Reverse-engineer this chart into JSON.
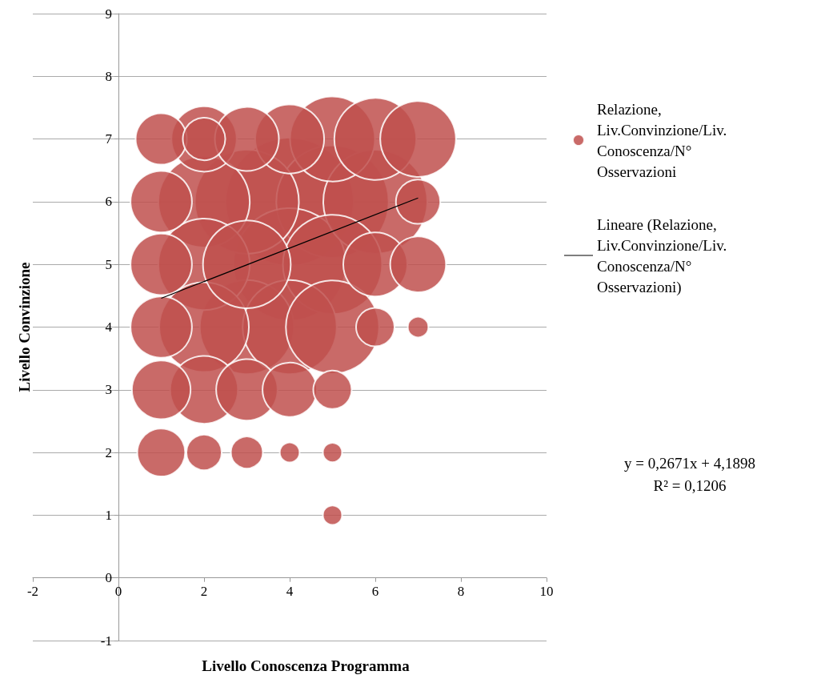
{
  "chart_data": {
    "type": "bubble",
    "xlabel": "Livello Conoscenza Programma",
    "ylabel": "Livello Convinzione",
    "xlim": [
      -2,
      10
    ],
    "xticks": [
      -2,
      0,
      2,
      4,
      6,
      8,
      10
    ],
    "ylim": [
      -1,
      9
    ],
    "yticks": [
      -1,
      0,
      1,
      2,
      3,
      4,
      5,
      6,
      7,
      8,
      9
    ],
    "grid": "y",
    "legend": "right",
    "series": [
      {
        "name": "Relazione, Liv.Convinzione/Liv. Conoscenza/N° Osservazioni",
        "color": "#c0504d",
        "marker": "circle",
        "x": [
          4,
          5,
          4,
          3,
          6,
          5,
          3,
          4,
          5,
          2,
          2,
          2,
          3,
          5,
          6,
          7,
          4,
          2,
          2,
          3,
          6,
          1,
          1,
          1,
          3,
          1,
          7,
          4,
          1,
          1,
          7,
          6,
          5,
          2,
          3,
          7,
          4,
          5,
          5
        ],
        "values": [
          6,
          6,
          5,
          6,
          6,
          5,
          4,
          4,
          4,
          6,
          5,
          4,
          5,
          7,
          7,
          7,
          7,
          3,
          7,
          7,
          5,
          6,
          5,
          4,
          3,
          3,
          5,
          3,
          7,
          2,
          6,
          4,
          3,
          2,
          2,
          4,
          2,
          2,
          1
        ],
        "sizes": [
          1,
          0.77,
          0.77,
          0.66,
          0.66,
          0.6,
          0.54,
          0.54,
          0.53,
          0.51,
          0.51,
          0.49,
          0.47,
          0.44,
          0.41,
          0.35,
          0.29,
          0.28,
          0.26,
          0.25,
          0.25,
          0.23,
          0.23,
          0.23,
          0.23,
          0.21,
          0.19,
          0.18,
          0.16,
          0.14,
          0.12,
          0.09,
          0.09,
          0.076,
          0.0625,
          0.026,
          0.024,
          0.0225,
          0.0225
        ]
      },
      {
        "color": "#c0504d",
        "marker": "circle",
        "x": [
          2
        ],
        "values": [
          7
        ],
        "sizes": [
          0.11
        ]
      },
      {
        "type": "line",
        "name": "Lineare (Relazione, Liv.Convinzione/Liv. Conoscenza/N° Osservazioni)",
        "color": "#000000",
        "marker": "none",
        "line_style": "solid",
        "x": [
          1,
          7
        ],
        "values": [
          4.46,
          6.06
        ]
      }
    ],
    "annotations": [
      "y = 0,2671x + 4,1898",
      "R² = 0,1206"
    ]
  }
}
